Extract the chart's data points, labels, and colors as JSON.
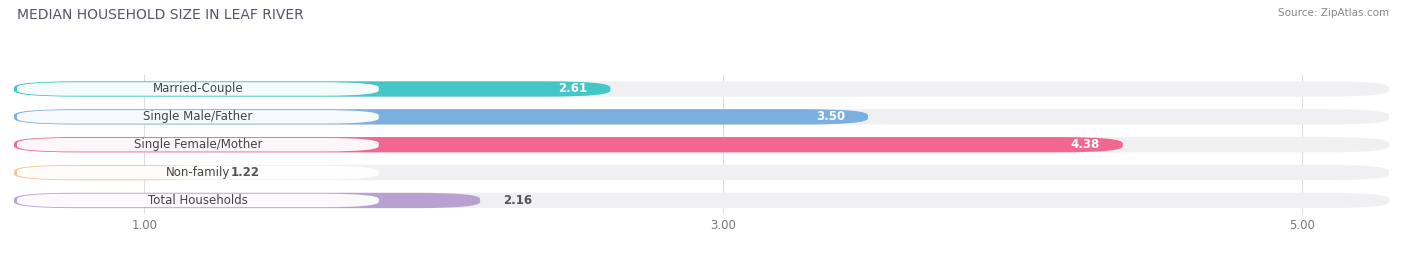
{
  "title": "MEDIAN HOUSEHOLD SIZE IN LEAF RIVER",
  "source": "Source: ZipAtlas.com",
  "categories": [
    "Married-Couple",
    "Single Male/Father",
    "Single Female/Mother",
    "Non-family",
    "Total Households"
  ],
  "values": [
    2.61,
    3.5,
    4.38,
    1.22,
    2.16
  ],
  "bar_colors": [
    "#45c6c6",
    "#7ab0e0",
    "#f06890",
    "#f5c98a",
    "#b8a0d0"
  ],
  "background_color": "#ffffff",
  "bar_bg_color": "#f0f0f2",
  "xlim": [
    0.55,
    5.3
  ],
  "xticks": [
    1.0,
    3.0,
    5.0
  ],
  "label_fontsize": 8.5,
  "value_fontsize": 8.5,
  "title_fontsize": 10,
  "source_fontsize": 7.5
}
